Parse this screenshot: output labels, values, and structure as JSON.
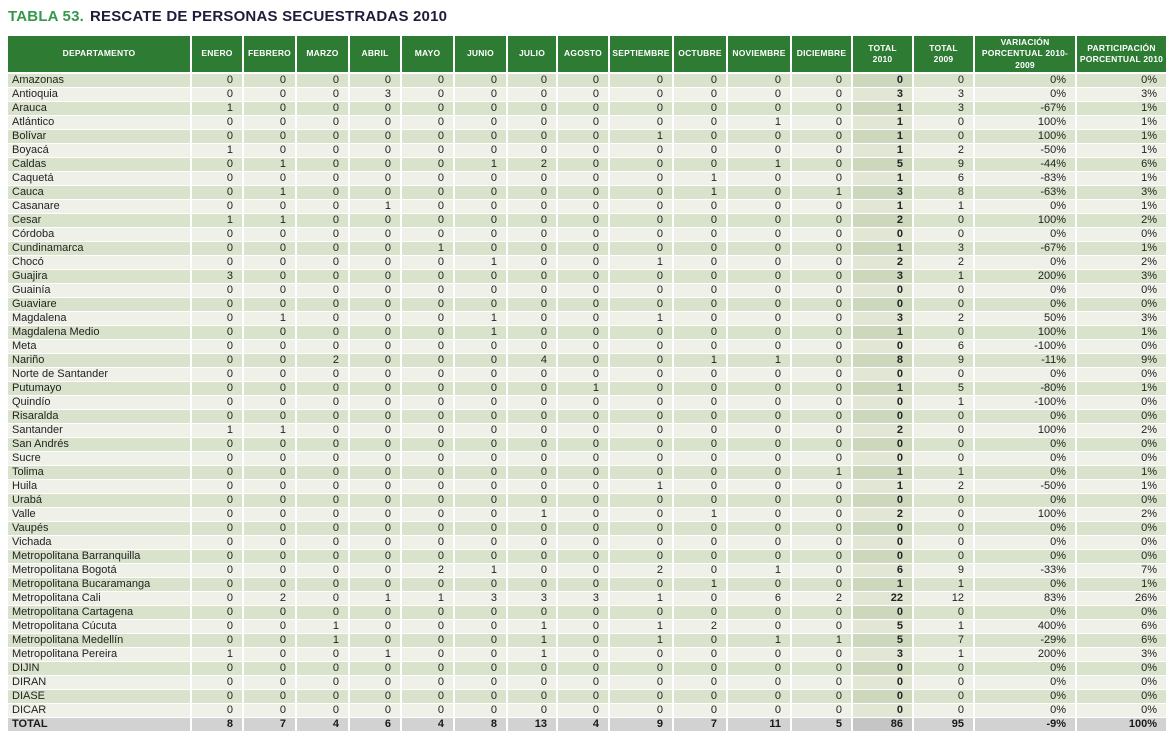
{
  "title": {
    "prefix": "TABLA 53.",
    "text": "RESCATE DE PERSONAS SECUESTRADAS 2010"
  },
  "colors": {
    "header_green": "#2e7b33",
    "row_stripe_dark": "#d9e3cb",
    "row_stripe_light": "#eff1e8",
    "total_2010_col_dark": "#ccd7bb",
    "total_2010_col_light": "#e2e6d5",
    "total_row_gray": "#d2d2d2",
    "total_row_total_cell": "#c5c5c5",
    "title_green": "#35984b",
    "title_dark": "#1d1d3a",
    "text_dark": "#222222"
  },
  "chart_data": {
    "type": "table",
    "table_number": "TABLA 53.",
    "title": "RESCATE DE PERSONAS SECUESTRADAS 2010",
    "columns": [
      "DEPARTAMENTO",
      "ENERO",
      "FEBRERO",
      "MARZO",
      "ABRIL",
      "MAYO",
      "JUNIO",
      "JULIO",
      "AGOSTO",
      "SEPTIEMBRE",
      "OCTUBRE",
      "NOVIEMBRE",
      "DICIEMBRE",
      "TOTAL 2010",
      "TOTAL 2009",
      "VARIACIÓN PORCENTUAL 2010-2009",
      "PARTICIPACIÓN PORCENTUAL 2010"
    ],
    "header_display": [
      "DEPARTAMENTO",
      "ENERO",
      "FEBRERO",
      "MARZO",
      "ABRIL",
      "MAYO",
      "JUNIO",
      "JULIO",
      "AGOSTO",
      "SEPTIEMBRE",
      "OCTUBRE",
      "NOVIEMBRE",
      "DICIEMBRE",
      "TOTAL\n2010",
      "TOTAL\n2009",
      "VARIACIÓN\nPORCENTUAL 2010-2009",
      "PARTICIPACIÓN\nPORCENTUAL 2010"
    ],
    "rows": [
      [
        "Amazonas",
        0,
        0,
        0,
        0,
        0,
        0,
        0,
        0,
        0,
        0,
        0,
        0,
        0,
        0,
        "0%",
        "0%"
      ],
      [
        "Antioquia",
        0,
        0,
        0,
        3,
        0,
        0,
        0,
        0,
        0,
        0,
        0,
        0,
        3,
        3,
        "0%",
        "3%"
      ],
      [
        "Arauca",
        1,
        0,
        0,
        0,
        0,
        0,
        0,
        0,
        0,
        0,
        0,
        0,
        1,
        3,
        "-67%",
        "1%"
      ],
      [
        "Atlántico",
        0,
        0,
        0,
        0,
        0,
        0,
        0,
        0,
        0,
        0,
        1,
        0,
        1,
        0,
        "100%",
        "1%"
      ],
      [
        "Bolívar",
        0,
        0,
        0,
        0,
        0,
        0,
        0,
        0,
        1,
        0,
        0,
        0,
        1,
        0,
        "100%",
        "1%"
      ],
      [
        "Boyacá",
        1,
        0,
        0,
        0,
        0,
        0,
        0,
        0,
        0,
        0,
        0,
        0,
        1,
        2,
        "-50%",
        "1%"
      ],
      [
        "Caldas",
        0,
        1,
        0,
        0,
        0,
        1,
        2,
        0,
        0,
        0,
        1,
        0,
        5,
        9,
        "-44%",
        "6%"
      ],
      [
        "Caquetá",
        0,
        0,
        0,
        0,
        0,
        0,
        0,
        0,
        0,
        1,
        0,
        0,
        1,
        6,
        "-83%",
        "1%"
      ],
      [
        "Cauca",
        0,
        1,
        0,
        0,
        0,
        0,
        0,
        0,
        0,
        1,
        0,
        1,
        3,
        8,
        "-63%",
        "3%"
      ],
      [
        "Casanare",
        0,
        0,
        0,
        1,
        0,
        0,
        0,
        0,
        0,
        0,
        0,
        0,
        1,
        1,
        "0%",
        "1%"
      ],
      [
        "Cesar",
        1,
        1,
        0,
        0,
        0,
        0,
        0,
        0,
        0,
        0,
        0,
        0,
        2,
        0,
        "100%",
        "2%"
      ],
      [
        "Córdoba",
        0,
        0,
        0,
        0,
        0,
        0,
        0,
        0,
        0,
        0,
        0,
        0,
        0,
        0,
        "0%",
        "0%"
      ],
      [
        "Cundinamarca",
        0,
        0,
        0,
        0,
        1,
        0,
        0,
        0,
        0,
        0,
        0,
        0,
        1,
        3,
        "-67%",
        "1%"
      ],
      [
        "Chocó",
        0,
        0,
        0,
        0,
        0,
        1,
        0,
        0,
        1,
        0,
        0,
        0,
        2,
        2,
        "0%",
        "2%"
      ],
      [
        "Guajira",
        3,
        0,
        0,
        0,
        0,
        0,
        0,
        0,
        0,
        0,
        0,
        0,
        3,
        1,
        "200%",
        "3%"
      ],
      [
        "Guainía",
        0,
        0,
        0,
        0,
        0,
        0,
        0,
        0,
        0,
        0,
        0,
        0,
        0,
        0,
        "0%",
        "0%"
      ],
      [
        "Guaviare",
        0,
        0,
        0,
        0,
        0,
        0,
        0,
        0,
        0,
        0,
        0,
        0,
        0,
        0,
        "0%",
        "0%"
      ],
      [
        "Magdalena",
        0,
        1,
        0,
        0,
        0,
        1,
        0,
        0,
        1,
        0,
        0,
        0,
        3,
        2,
        "50%",
        "3%"
      ],
      [
        "Magdalena Medio",
        0,
        0,
        0,
        0,
        0,
        1,
        0,
        0,
        0,
        0,
        0,
        0,
        1,
        0,
        "100%",
        "1%"
      ],
      [
        "Meta",
        0,
        0,
        0,
        0,
        0,
        0,
        0,
        0,
        0,
        0,
        0,
        0,
        0,
        6,
        "-100%",
        "0%"
      ],
      [
        "Nariño",
        0,
        0,
        2,
        0,
        0,
        0,
        4,
        0,
        0,
        1,
        1,
        0,
        8,
        9,
        "-11%",
        "9%"
      ],
      [
        "Norte de Santander",
        0,
        0,
        0,
        0,
        0,
        0,
        0,
        0,
        0,
        0,
        0,
        0,
        0,
        0,
        "0%",
        "0%"
      ],
      [
        "Putumayo",
        0,
        0,
        0,
        0,
        0,
        0,
        0,
        1,
        0,
        0,
        0,
        0,
        1,
        5,
        "-80%",
        "1%"
      ],
      [
        "Quindío",
        0,
        0,
        0,
        0,
        0,
        0,
        0,
        0,
        0,
        0,
        0,
        0,
        0,
        1,
        "-100%",
        "0%"
      ],
      [
        "Risaralda",
        0,
        0,
        0,
        0,
        0,
        0,
        0,
        0,
        0,
        0,
        0,
        0,
        0,
        0,
        "0%",
        "0%"
      ],
      [
        "Santander",
        1,
        1,
        0,
        0,
        0,
        0,
        0,
        0,
        0,
        0,
        0,
        0,
        2,
        0,
        "100%",
        "2%"
      ],
      [
        "San Andrés",
        0,
        0,
        0,
        0,
        0,
        0,
        0,
        0,
        0,
        0,
        0,
        0,
        0,
        0,
        "0%",
        "0%"
      ],
      [
        "Sucre",
        0,
        0,
        0,
        0,
        0,
        0,
        0,
        0,
        0,
        0,
        0,
        0,
        0,
        0,
        "0%",
        "0%"
      ],
      [
        "Tolima",
        0,
        0,
        0,
        0,
        0,
        0,
        0,
        0,
        0,
        0,
        0,
        1,
        1,
        1,
        "0%",
        "1%"
      ],
      [
        "Huila",
        0,
        0,
        0,
        0,
        0,
        0,
        0,
        0,
        1,
        0,
        0,
        0,
        1,
        2,
        "-50%",
        "1%"
      ],
      [
        "Urabá",
        0,
        0,
        0,
        0,
        0,
        0,
        0,
        0,
        0,
        0,
        0,
        0,
        0,
        0,
        "0%",
        "0%"
      ],
      [
        "Valle",
        0,
        0,
        0,
        0,
        0,
        0,
        1,
        0,
        0,
        1,
        0,
        0,
        2,
        0,
        "100%",
        "2%"
      ],
      [
        "Vaupés",
        0,
        0,
        0,
        0,
        0,
        0,
        0,
        0,
        0,
        0,
        0,
        0,
        0,
        0,
        "0%",
        "0%"
      ],
      [
        "Vichada",
        0,
        0,
        0,
        0,
        0,
        0,
        0,
        0,
        0,
        0,
        0,
        0,
        0,
        0,
        "0%",
        "0%"
      ],
      [
        "Metropolitana Barranquilla",
        0,
        0,
        0,
        0,
        0,
        0,
        0,
        0,
        0,
        0,
        0,
        0,
        0,
        0,
        "0%",
        "0%"
      ],
      [
        "Metropolitana Bogotá",
        0,
        0,
        0,
        0,
        2,
        1,
        0,
        0,
        2,
        0,
        1,
        0,
        6,
        9,
        "-33%",
        "7%"
      ],
      [
        "Metropolitana Bucaramanga",
        0,
        0,
        0,
        0,
        0,
        0,
        0,
        0,
        0,
        1,
        0,
        0,
        1,
        1,
        "0%",
        "1%"
      ],
      [
        "Metropolitana Cali",
        0,
        2,
        0,
        1,
        1,
        3,
        3,
        3,
        1,
        0,
        6,
        2,
        22,
        12,
        "83%",
        "26%"
      ],
      [
        "Metropolitana Cartagena",
        0,
        0,
        0,
        0,
        0,
        0,
        0,
        0,
        0,
        0,
        0,
        0,
        0,
        0,
        "0%",
        "0%"
      ],
      [
        "Metropolitana Cúcuta",
        0,
        0,
        1,
        0,
        0,
        0,
        1,
        0,
        1,
        2,
        0,
        0,
        5,
        1,
        "400%",
        "6%"
      ],
      [
        "Metropolitana Medellín",
        0,
        0,
        1,
        0,
        0,
        0,
        1,
        0,
        1,
        0,
        1,
        1,
        5,
        7,
        "-29%",
        "6%"
      ],
      [
        "Metropolitana Pereira",
        1,
        0,
        0,
        1,
        0,
        0,
        1,
        0,
        0,
        0,
        0,
        0,
        3,
        1,
        "200%",
        "3%"
      ],
      [
        "DIJIN",
        0,
        0,
        0,
        0,
        0,
        0,
        0,
        0,
        0,
        0,
        0,
        0,
        0,
        0,
        "0%",
        "0%"
      ],
      [
        "DIRAN",
        0,
        0,
        0,
        0,
        0,
        0,
        0,
        0,
        0,
        0,
        0,
        0,
        0,
        0,
        "0%",
        "0%"
      ],
      [
        "DIASE",
        0,
        0,
        0,
        0,
        0,
        0,
        0,
        0,
        0,
        0,
        0,
        0,
        0,
        0,
        "0%",
        "0%"
      ],
      [
        "DICAR",
        0,
        0,
        0,
        0,
        0,
        0,
        0,
        0,
        0,
        0,
        0,
        0,
        0,
        0,
        "0%",
        "0%"
      ]
    ],
    "total_row": [
      "TOTAL",
      8,
      7,
      4,
      6,
      4,
      8,
      13,
      4,
      9,
      7,
      11,
      5,
      86,
      95,
      "-9%",
      "100%"
    ]
  }
}
